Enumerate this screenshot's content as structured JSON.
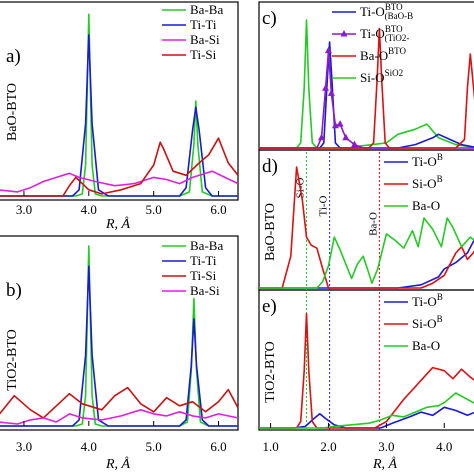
{
  "colors": {
    "Ba-Ba": "#22cc22",
    "Ti-Ti": "#1a1ad6",
    "Ba-Si": "#e020e0",
    "Ti-Si": "#cc1111",
    "Ti-O (BaO)": "#1a1ad6",
    "Ti-O (TiO2)": "#8a1acc",
    "Ba-O": "#dd1111",
    "Si-O": "#22cc22"
  },
  "chart_data": [
    {
      "id": "a",
      "panel_label": "a)",
      "type": "line",
      "ylabel": "BaO-BTO",
      "xlabel": "R, Å",
      "xlim": [
        2.6,
        6.3
      ],
      "xticks": [
        "3.0",
        "4.0",
        "5.0",
        "6.0"
      ],
      "series": [
        {
          "name": "Ba-Ba",
          "color": "#22cc22",
          "x": [
            2.6,
            3.8,
            3.9,
            3.95,
            4.0,
            4.05,
            4.1,
            4.2,
            5.4,
            5.55,
            5.62,
            5.65,
            5.68,
            5.75,
            5.9,
            6.3
          ],
          "y": [
            0,
            0,
            0.1,
            1.5,
            8.8,
            1.5,
            0.1,
            0,
            0,
            0.2,
            2.5,
            4.6,
            2.5,
            0.2,
            0,
            0
          ]
        },
        {
          "name": "Ti-Ti",
          "color": "#1a1ad6",
          "x": [
            2.6,
            3.75,
            3.85,
            3.95,
            4.0,
            4.05,
            4.15,
            4.3,
            4.4,
            5.4,
            5.5,
            5.6,
            5.65,
            5.7,
            5.8,
            5.9,
            6.3
          ],
          "y": [
            0,
            0,
            0.3,
            3.5,
            7.8,
            3.5,
            0.3,
            0,
            0,
            0,
            0.4,
            3.2,
            4.3,
            3.2,
            0.4,
            0,
            0
          ]
        },
        {
          "name": "Ba-Si",
          "color": "#e020e0",
          "x": [
            2.6,
            2.9,
            3.1,
            3.3,
            3.5,
            3.7,
            3.85,
            4.1,
            4.4,
            4.7,
            5.0,
            5.2,
            5.4,
            5.6,
            5.9,
            6.1,
            6.3
          ],
          "y": [
            0.3,
            0.2,
            0.4,
            0.7,
            0.9,
            1.1,
            0.9,
            0.7,
            0.5,
            0.6,
            0.9,
            0.8,
            0.6,
            0.9,
            1.2,
            0.9,
            0.6
          ]
        },
        {
          "name": "Ti-Si",
          "color": "#cc1111",
          "x": [
            2.6,
            3.6,
            3.7,
            3.8,
            3.9,
            4.0,
            4.2,
            4.5,
            4.8,
            5.0,
            5.1,
            5.15,
            5.3,
            5.5,
            5.7,
            5.85,
            6.0,
            6.15,
            6.3
          ],
          "y": [
            0,
            0,
            0.5,
            0.9,
            0.6,
            0.3,
            0.1,
            0.3,
            0.6,
            1.5,
            2.6,
            2.3,
            1.2,
            1.0,
            1.6,
            2.0,
            2.8,
            1.6,
            1.0
          ]
        }
      ]
    },
    {
      "id": "b",
      "panel_label": "b)",
      "type": "line",
      "ylabel": "TiO2-BTO",
      "xlabel": "R, Å",
      "xlim": [
        2.6,
        6.3
      ],
      "xticks": [
        "3.0",
        "4.0",
        "5.0",
        "6.0"
      ],
      "series": [
        {
          "name": "Ba-Ba",
          "color": "#22cc22",
          "x": [
            2.6,
            3.8,
            3.9,
            3.95,
            4.0,
            4.05,
            4.1,
            4.2,
            5.4,
            5.52,
            5.58,
            5.62,
            5.66,
            5.72,
            5.85,
            6.3
          ],
          "y": [
            0,
            0,
            0.1,
            1.5,
            8.9,
            1.5,
            0.1,
            0,
            0,
            0.2,
            2.8,
            6.3,
            2.8,
            0.2,
            0,
            0
          ]
        },
        {
          "name": "Ti-Ti",
          "color": "#1a1ad6",
          "x": [
            2.6,
            3.75,
            3.85,
            3.95,
            4.0,
            4.05,
            4.15,
            4.3,
            5.4,
            5.5,
            5.58,
            5.62,
            5.66,
            5.75,
            5.85,
            6.3
          ],
          "y": [
            0,
            0,
            0.3,
            3.5,
            7.9,
            3.5,
            0.3,
            0,
            0,
            0.3,
            3.0,
            5.3,
            3.0,
            0.3,
            0,
            0
          ]
        },
        {
          "name": "Ti-Si",
          "color": "#cc1111",
          "x": [
            2.6,
            2.85,
            3.1,
            3.3,
            3.5,
            3.7,
            3.9,
            4.2,
            4.4,
            4.6,
            4.8,
            5.0,
            5.2,
            5.4,
            5.6,
            5.8,
            6.0,
            6.15,
            6.3
          ],
          "y": [
            0.5,
            1.5,
            0.8,
            0.4,
            1.0,
            1.6,
            1.1,
            0.8,
            1.5,
            1.9,
            1.1,
            0.7,
            1.4,
            1.0,
            1.2,
            0.7,
            1.2,
            1.8,
            0.9
          ]
        },
        {
          "name": "Ba-Si",
          "color": "#e020e0",
          "x": [
            2.6,
            2.9,
            3.1,
            3.3,
            3.5,
            3.7,
            3.9,
            4.2,
            4.5,
            4.8,
            5.0,
            5.2,
            5.4,
            5.6,
            5.8,
            6.0,
            6.3
          ],
          "y": [
            0.2,
            0.1,
            0.3,
            0.4,
            0.2,
            0.6,
            0.4,
            0.3,
            0.5,
            0.8,
            0.6,
            0.5,
            0.7,
            0.5,
            0.4,
            0.6,
            0.4
          ]
        }
      ]
    },
    {
      "id": "c",
      "panel_label": "c)",
      "type": "line",
      "xlim": [
        0.8,
        4.6
      ],
      "legend": [
        {
          "main": "Ti-O",
          "sup": "BTO",
          "sub": "(BaO-B",
          "color": "#1a1ad6",
          "marker": false
        },
        {
          "main": "Ti-O",
          "sup": "BTO",
          "sub": "(TiO2-",
          "color": "#8a1acc",
          "marker": true
        },
        {
          "main": "Ba-O",
          "sup": "BTO",
          "sub": "",
          "color": "#dd1111",
          "marker": false
        },
        {
          "main": "Si-O",
          "sup": "SiO2",
          "sub": "",
          "color": "#22cc22",
          "marker": false
        }
      ],
      "series": [
        {
          "name": "Si-O SiO2",
          "color": "#22cc22",
          "x": [
            0.8,
            1.45,
            1.52,
            1.58,
            1.62,
            1.66,
            1.72,
            1.8,
            2.0,
            2.4,
            2.5,
            3.0,
            3.2,
            3.5,
            3.7,
            3.8,
            3.9,
            4.2,
            4.6
          ],
          "y": [
            0,
            0,
            0.3,
            3.5,
            7.5,
            3.5,
            0.3,
            0,
            0,
            0,
            0.1,
            0.3,
            0.8,
            1.1,
            1.4,
            1.0,
            0.6,
            0.2,
            0
          ]
        },
        {
          "name": "Ti-O BTO (BaO-BTO)",
          "color": "#1a1ad6",
          "x": [
            0.8,
            1.85,
            1.92,
            1.98,
            2.02,
            2.06,
            2.12,
            2.2,
            3.2,
            3.5,
            3.8,
            3.9,
            4.1,
            4.3,
            4.6
          ],
          "y": [
            0,
            0,
            0.3,
            4.0,
            6.2,
            4.0,
            0.3,
            0,
            0,
            0.2,
            0.6,
            0.8,
            0.5,
            0.2,
            0
          ]
        },
        {
          "name": "Ti-O BTO (TiO2-BTO)",
          "color": "#8a1acc",
          "marker": "triangle",
          "x": [
            0.8,
            1.8,
            1.88,
            1.95,
            2.0,
            2.05,
            2.12,
            2.2,
            2.3,
            2.45,
            2.6,
            3.5,
            4.6
          ],
          "y": [
            0,
            0,
            0.6,
            3.5,
            5.7,
            3.2,
            1.3,
            1.4,
            0.6,
            0.2,
            0,
            0,
            0
          ]
        },
        {
          "name": "Ba-O BTO",
          "color": "#dd1111",
          "x": [
            0.8,
            2.7,
            2.78,
            2.84,
            2.88,
            2.92,
            2.98,
            3.05,
            3.8,
            4.2,
            4.35,
            4.4,
            4.45,
            4.55,
            4.6
          ],
          "y": [
            0,
            0,
            0.3,
            4.0,
            7.0,
            4.0,
            0.3,
            0,
            0,
            0,
            0.5,
            3.5,
            5.5,
            2.0,
            0.8
          ]
        }
      ]
    },
    {
      "id": "d",
      "panel_label": "d)",
      "type": "line",
      "ylabel": "BaO-BTO",
      "xlim": [
        0.8,
        4.6
      ],
      "vlines": [
        {
          "x": 1.62,
          "label": "Si-O",
          "color": "#22cc22"
        },
        {
          "x": 2.02,
          "label": "Ti-O",
          "color": "#1a1ad6"
        },
        {
          "x": 2.88,
          "label": "Ba-O",
          "color": "#dd1111"
        }
      ],
      "legend": [
        {
          "main": "Ti-O",
          "sup": "B",
          "sub": "",
          "color": "#1a1ad6",
          "marker": false
        },
        {
          "main": "Si-O",
          "sup": "B",
          "sub": "",
          "color": "#dd1111",
          "marker": false
        },
        {
          "main": "Ba-O",
          "sup": "",
          "sub": "",
          "color": "#22cc22",
          "marker": false
        }
      ],
      "series": [
        {
          "name": "Ti-O BTO",
          "color": "#1a1ad6",
          "x": [
            0.8,
            2.8,
            3.2,
            3.6,
            3.9,
            4.0,
            4.2,
            4.3,
            4.4,
            4.5,
            4.6
          ],
          "y": [
            0,
            0,
            0,
            0.2,
            0.7,
            1.2,
            1.6,
            1.9,
            2.2,
            2.9,
            3.5
          ]
        },
        {
          "name": "Si-O BTO",
          "color": "#dd1111",
          "x": [
            0.8,
            1.2,
            1.35,
            1.45,
            1.55,
            1.62,
            1.7,
            1.8,
            1.9,
            2.0,
            2.5,
            3.6,
            3.8,
            4.0,
            4.2,
            4.3,
            4.4,
            4.5,
            4.6
          ],
          "y": [
            0,
            0,
            2.0,
            7.6,
            5.5,
            3.2,
            2.7,
            2.5,
            1.2,
            0,
            0,
            0,
            0.3,
            0.8,
            2.2,
            2.6,
            1.8,
            2.2,
            2.8
          ]
        },
        {
          "name": "Ba-O",
          "color": "#22cc22",
          "x": [
            0.8,
            1.8,
            1.9,
            2.0,
            2.1,
            2.2,
            2.4,
            2.5,
            2.6,
            2.7,
            2.75,
            2.85,
            3.0,
            3.15,
            3.3,
            3.45,
            3.55,
            3.65,
            3.8,
            3.95,
            4.05,
            4.15,
            4.3,
            4.45,
            4.6
          ],
          "y": [
            0,
            0,
            0.4,
            1.4,
            3.2,
            2.4,
            0.6,
            1.5,
            2.0,
            0.9,
            0.3,
            1.2,
            3.4,
            3.0,
            2.5,
            3.6,
            2.6,
            4.4,
            3.7,
            2.6,
            4.4,
            3.8,
            2.6,
            3.2,
            2.8
          ]
        }
      ]
    },
    {
      "id": "e",
      "panel_label": "e)",
      "type": "line",
      "ylabel": "TiO2-BTO",
      "xlabel": "R, Å",
      "xlim": [
        0.8,
        4.6
      ],
      "xticks": [
        "1.0",
        "2.0",
        "3.0",
        "4.0"
      ],
      "vlines": [
        {
          "x": 1.62,
          "color": "#22cc22"
        },
        {
          "x": 2.02,
          "color": "#1a1ad6"
        },
        {
          "x": 2.88,
          "color": "#dd1111"
        }
      ],
      "legend": [
        {
          "main": "Ti-O",
          "sup": "B",
          "sub": "",
          "color": "#1a1ad6",
          "marker": false
        },
        {
          "main": "Si-O",
          "sup": "B",
          "sub": "",
          "color": "#dd1111",
          "marker": false
        },
        {
          "main": "Ba-O",
          "sup": "",
          "sub": "",
          "color": "#22cc22",
          "marker": false
        }
      ],
      "series": [
        {
          "name": "Ti-O BTO",
          "color": "#1a1ad6",
          "x": [
            0.8,
            1.4,
            1.6,
            1.75,
            1.85,
            1.95,
            2.1,
            2.3,
            2.5,
            2.9,
            3.1,
            3.4,
            3.6,
            3.8,
            4.0,
            4.2,
            4.4,
            4.6
          ],
          "y": [
            0,
            0,
            0.1,
            0.6,
            0.9,
            0.6,
            0.2,
            0,
            0,
            0,
            0.3,
            0.7,
            1.0,
            0.8,
            1.3,
            1.1,
            0.8,
            1.1
          ]
        },
        {
          "name": "Si-O BTO",
          "color": "#dd1111",
          "x": [
            0.8,
            1.45,
            1.52,
            1.58,
            1.62,
            1.66,
            1.72,
            1.8,
            2.0,
            2.4,
            2.8,
            3.0,
            3.3,
            3.6,
            3.8,
            4.0,
            4.15,
            4.3,
            4.45,
            4.6
          ],
          "y": [
            0,
            0,
            0.4,
            3.6,
            7.2,
            3.6,
            0.4,
            0,
            0,
            0,
            0,
            0.4,
            1.8,
            3.0,
            3.8,
            3.6,
            3.1,
            3.7,
            3.2,
            2.8
          ]
        },
        {
          "name": "Ba-O",
          "color": "#22cc22",
          "x": [
            0.8,
            1.9,
            2.1,
            2.4,
            2.7,
            2.9,
            3.1,
            3.3,
            3.5,
            3.7,
            3.9,
            4.0,
            4.1,
            4.2,
            4.35,
            4.5,
            4.6
          ],
          "y": [
            0,
            0,
            0.1,
            0.2,
            0.3,
            0.5,
            0.8,
            0.7,
            1.0,
            1.3,
            1.4,
            1.6,
            1.9,
            2.2,
            1.9,
            1.6,
            1.4
          ]
        }
      ]
    }
  ]
}
